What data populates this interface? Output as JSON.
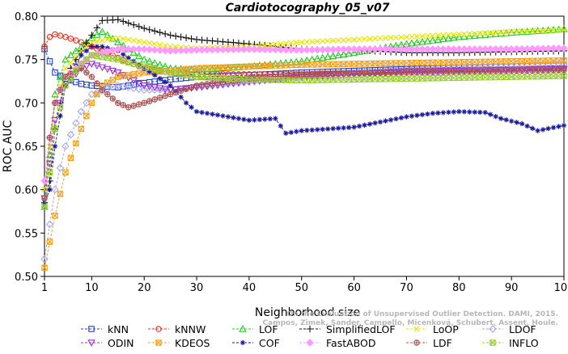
{
  "chart_data": {
    "type": "line",
    "title": "Cardiotocography_05_v07",
    "xlabel": "Neighborhood size",
    "ylabel": "ROC AUC",
    "xlim": [
      1,
      100
    ],
    "ylim": [
      0.5,
      0.8
    ],
    "xticks": [
      1,
      10,
      20,
      30,
      40,
      50,
      60,
      70,
      80,
      90,
      100
    ],
    "yticks": [
      0.5,
      0.55,
      0.6,
      0.65,
      0.7,
      0.75,
      0.8
    ],
    "ytick_labels": [
      "0.50",
      "0.55",
      "0.60",
      "0.65",
      "0.70",
      "0.75",
      "0.80"
    ],
    "grid": false,
    "legend_position": "bottom",
    "watermark": "Campos, Zimek, Sander, Campello, Micenková, Schubert, Assent, Houle. On the Evaluation of Unsupervised Outlier Detection. DAMI, 2015.",
    "series": [
      {
        "name": "kNN",
        "color": "#1f3fbf",
        "marker": "square",
        "points": [
          [
            1,
            0.762
          ],
          [
            2,
            0.748
          ],
          [
            3,
            0.735
          ],
          [
            5,
            0.728
          ],
          [
            8,
            0.722
          ],
          [
            10,
            0.72
          ],
          [
            15,
            0.718
          ],
          [
            20,
            0.723
          ],
          [
            25,
            0.727
          ],
          [
            30,
            0.73
          ],
          [
            40,
            0.732
          ],
          [
            50,
            0.735
          ],
          [
            60,
            0.737
          ],
          [
            70,
            0.739
          ],
          [
            80,
            0.741
          ],
          [
            90,
            0.742
          ],
          [
            100,
            0.743
          ]
        ]
      },
      {
        "name": "kNNW",
        "color": "#e8321f",
        "marker": "circle",
        "points": [
          [
            1,
            0.765
          ],
          [
            2,
            0.776
          ],
          [
            3,
            0.779
          ],
          [
            5,
            0.776
          ],
          [
            8,
            0.77
          ],
          [
            10,
            0.765
          ],
          [
            15,
            0.752
          ],
          [
            20,
            0.74
          ],
          [
            25,
            0.735
          ],
          [
            30,
            0.733
          ],
          [
            40,
            0.733
          ],
          [
            50,
            0.733
          ],
          [
            60,
            0.735
          ],
          [
            70,
            0.737
          ],
          [
            80,
            0.738
          ],
          [
            90,
            0.739
          ],
          [
            100,
            0.74
          ]
        ]
      },
      {
        "name": "LOF",
        "color": "#23cc23",
        "marker": "triangle",
        "points": [
          [
            1,
            0.58
          ],
          [
            2,
            0.64
          ],
          [
            3,
            0.71
          ],
          [
            5,
            0.75
          ],
          [
            8,
            0.765
          ],
          [
            10,
            0.775
          ],
          [
            12,
            0.782
          ],
          [
            15,
            0.77
          ],
          [
            20,
            0.75
          ],
          [
            25,
            0.74
          ],
          [
            30,
            0.738
          ],
          [
            40,
            0.742
          ],
          [
            50,
            0.748
          ],
          [
            60,
            0.758
          ],
          [
            70,
            0.768
          ],
          [
            80,
            0.776
          ],
          [
            90,
            0.781
          ],
          [
            100,
            0.785
          ]
        ]
      },
      {
        "name": "SimplifiedLOF",
        "color": "#111111",
        "marker": "plus",
        "points": [
          [
            1,
            0.585
          ],
          [
            2,
            0.61
          ],
          [
            3,
            0.67
          ],
          [
            5,
            0.73
          ],
          [
            8,
            0.76
          ],
          [
            10,
            0.778
          ],
          [
            12,
            0.795
          ],
          [
            15,
            0.796
          ],
          [
            20,
            0.786
          ],
          [
            25,
            0.778
          ],
          [
            30,
            0.773
          ],
          [
            40,
            0.768
          ],
          [
            50,
            0.762
          ],
          [
            55,
            0.761
          ],
          [
            60,
            0.761
          ],
          [
            70,
            0.758
          ],
          [
            80,
            0.758
          ],
          [
            90,
            0.759
          ],
          [
            100,
            0.76
          ]
        ]
      },
      {
        "name": "LoOP",
        "color": "#e6e600",
        "marker": "x",
        "points": [
          [
            1,
            0.6
          ],
          [
            2,
            0.65
          ],
          [
            3,
            0.7
          ],
          [
            5,
            0.74
          ],
          [
            8,
            0.76
          ],
          [
            10,
            0.77
          ],
          [
            15,
            0.775
          ],
          [
            20,
            0.77
          ],
          [
            25,
            0.765
          ],
          [
            30,
            0.763
          ],
          [
            40,
            0.765
          ],
          [
            50,
            0.77
          ],
          [
            60,
            0.773
          ],
          [
            70,
            0.776
          ],
          [
            80,
            0.779
          ],
          [
            90,
            0.782
          ],
          [
            100,
            0.784
          ]
        ]
      },
      {
        "name": "LDOF",
        "color": "#a8a8ee",
        "marker": "diamond",
        "points": [
          [
            1,
            0.52
          ],
          [
            2,
            0.56
          ],
          [
            3,
            0.6
          ],
          [
            5,
            0.65
          ],
          [
            8,
            0.69
          ],
          [
            10,
            0.71
          ],
          [
            15,
            0.72
          ],
          [
            20,
            0.715
          ],
          [
            25,
            0.715
          ],
          [
            30,
            0.718
          ],
          [
            40,
            0.724
          ],
          [
            50,
            0.73
          ],
          [
            60,
            0.735
          ],
          [
            70,
            0.738
          ],
          [
            80,
            0.74
          ],
          [
            90,
            0.742
          ],
          [
            100,
            0.744
          ]
        ]
      },
      {
        "name": "ODIN",
        "color": "#9933cc",
        "marker": "triangle-down",
        "points": [
          [
            1,
            0.59
          ],
          [
            2,
            0.63
          ],
          [
            3,
            0.68
          ],
          [
            5,
            0.72
          ],
          [
            8,
            0.74
          ],
          [
            10,
            0.745
          ],
          [
            15,
            0.735
          ],
          [
            20,
            0.72
          ],
          [
            25,
            0.715
          ],
          [
            30,
            0.718
          ],
          [
            40,
            0.725
          ],
          [
            50,
            0.73
          ],
          [
            60,
            0.733
          ],
          [
            70,
            0.736
          ],
          [
            80,
            0.737
          ],
          [
            90,
            0.738
          ],
          [
            100,
            0.739
          ]
        ]
      },
      {
        "name": "KDEOS",
        "color": "#f0a020",
        "marker": "square-x",
        "points": [
          [
            1,
            0.51
          ],
          [
            2,
            0.54
          ],
          [
            3,
            0.57
          ],
          [
            5,
            0.62
          ],
          [
            8,
            0.67
          ],
          [
            10,
            0.7
          ],
          [
            12,
            0.72
          ],
          [
            15,
            0.73
          ],
          [
            20,
            0.735
          ],
          [
            25,
            0.737
          ],
          [
            30,
            0.74
          ],
          [
            40,
            0.742
          ],
          [
            50,
            0.744
          ],
          [
            60,
            0.745
          ],
          [
            70,
            0.746
          ],
          [
            80,
            0.747
          ],
          [
            90,
            0.748
          ],
          [
            100,
            0.749
          ]
        ]
      },
      {
        "name": "COF",
        "color": "#1a1a99",
        "marker": "asterisk",
        "points": [
          [
            1,
            0.585
          ],
          [
            2,
            0.6
          ],
          [
            3,
            0.65
          ],
          [
            5,
            0.72
          ],
          [
            8,
            0.755
          ],
          [
            10,
            0.765
          ],
          [
            12,
            0.765
          ],
          [
            15,
            0.76
          ],
          [
            20,
            0.74
          ],
          [
            25,
            0.72
          ],
          [
            28,
            0.7
          ],
          [
            30,
            0.69
          ],
          [
            35,
            0.685
          ],
          [
            40,
            0.68
          ],
          [
            45,
            0.682
          ],
          [
            47,
            0.665
          ],
          [
            50,
            0.668
          ],
          [
            55,
            0.67
          ],
          [
            60,
            0.672
          ],
          [
            65,
            0.678
          ],
          [
            70,
            0.684
          ],
          [
            75,
            0.688
          ],
          [
            80,
            0.69
          ],
          [
            85,
            0.689
          ],
          [
            88,
            0.682
          ],
          [
            92,
            0.676
          ],
          [
            95,
            0.668
          ],
          [
            100,
            0.674
          ]
        ]
      },
      {
        "name": "FastABOD",
        "color": "#ff99ff",
        "marker": "diamond-filled",
        "points": [
          [
            1,
            0.61
          ],
          [
            2,
            0.66
          ],
          [
            3,
            0.7
          ],
          [
            5,
            0.73
          ],
          [
            8,
            0.745
          ],
          [
            10,
            0.755
          ],
          [
            15,
            0.762
          ],
          [
            20,
            0.762
          ],
          [
            25,
            0.76
          ],
          [
            30,
            0.761
          ],
          [
            40,
            0.762
          ],
          [
            50,
            0.761
          ],
          [
            60,
            0.762
          ],
          [
            70,
            0.762
          ],
          [
            80,
            0.762
          ],
          [
            90,
            0.762
          ],
          [
            100,
            0.763
          ]
        ]
      },
      {
        "name": "LDF",
        "color": "#a85050",
        "marker": "circle-plus",
        "points": [
          [
            1,
            0.59
          ],
          [
            2,
            0.66
          ],
          [
            3,
            0.7
          ],
          [
            5,
            0.73
          ],
          [
            8,
            0.74
          ],
          [
            10,
            0.73
          ],
          [
            12,
            0.715
          ],
          [
            15,
            0.7
          ],
          [
            17,
            0.695
          ],
          [
            20,
            0.7
          ],
          [
            25,
            0.71
          ],
          [
            30,
            0.72
          ],
          [
            40,
            0.728
          ],
          [
            50,
            0.732
          ],
          [
            60,
            0.734
          ],
          [
            70,
            0.735
          ],
          [
            80,
            0.736
          ],
          [
            90,
            0.737
          ],
          [
            100,
            0.738
          ]
        ]
      },
      {
        "name": "INFLO",
        "color": "#99cc33",
        "marker": "square-x",
        "points": [
          [
            1,
            0.58
          ],
          [
            2,
            0.62
          ],
          [
            3,
            0.67
          ],
          [
            5,
            0.72
          ],
          [
            8,
            0.745
          ],
          [
            10,
            0.755
          ],
          [
            15,
            0.75
          ],
          [
            20,
            0.742
          ],
          [
            25,
            0.735
          ],
          [
            30,
            0.73
          ],
          [
            40,
            0.727
          ],
          [
            50,
            0.726
          ],
          [
            60,
            0.727
          ],
          [
            70,
            0.728
          ],
          [
            80,
            0.729
          ],
          [
            90,
            0.73
          ],
          [
            100,
            0.731
          ]
        ]
      }
    ]
  }
}
